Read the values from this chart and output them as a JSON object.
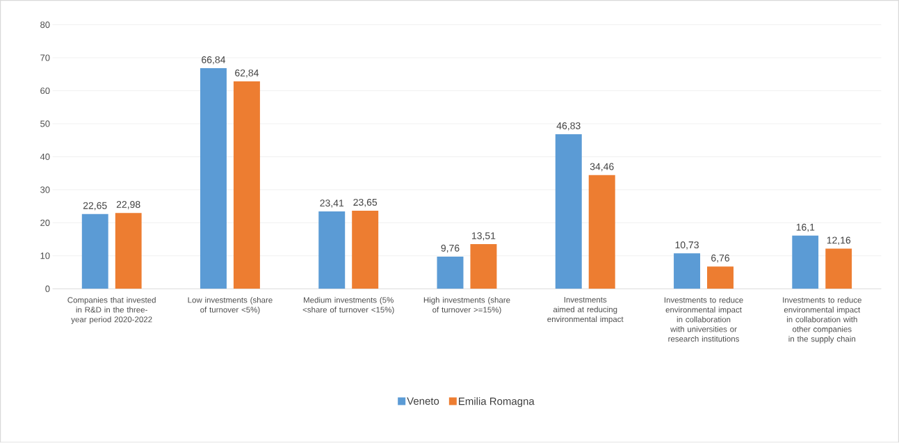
{
  "chart_data": {
    "type": "bar",
    "categories": [
      "Companies that invested in R&D in the three-year period 2020-2022",
      "Low investments (share of turnover <5%)",
      "Medium investments (5% <share of turnover <15%)",
      "High investments (share of turnover >=15%)",
      "Investments aimed at reducing environmental impact",
      "Investments to reduce environmental impact in collaboration with universities or research institutions",
      "Investments to reduce environmental impact in collaboration with other companies in the supply chain"
    ],
    "series": [
      {
        "name": "Veneto",
        "color": "#5b9bd5",
        "values": [
          22.65,
          66.84,
          23.41,
          9.76,
          46.83,
          10.73,
          16.1
        ],
        "value_labels": [
          "22,65",
          "66,84",
          "23,41",
          "9,76",
          "46,83",
          "10,73",
          "16,1"
        ]
      },
      {
        "name": "Emilia Romagna",
        "color": "#ed7d31",
        "values": [
          22.98,
          62.84,
          23.65,
          13.51,
          34.46,
          6.76,
          12.16
        ],
        "value_labels": [
          "22,98",
          "62,84",
          "23,65",
          "13,51",
          "34,46",
          "6,76",
          "12,16"
        ]
      }
    ],
    "ylim": [
      0,
      80
    ],
    "yticks": [
      0,
      10,
      20,
      30,
      40,
      50,
      60,
      70,
      80
    ],
    "grid": "y",
    "legend": "bottom"
  }
}
